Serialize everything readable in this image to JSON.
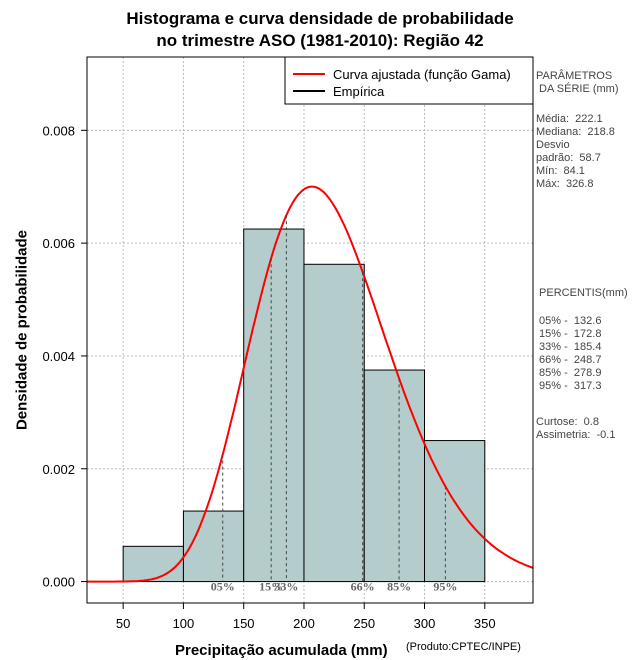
{
  "chart_data": {
    "type": "bar",
    "title_line1": "Histograma e curva densidade de probabilidade",
    "title_line2": "no trimestre ASO (1981-2010): Região 42",
    "xlabel": "Precipitação acumulada (mm)",
    "ylabel": "Densidade de probabilidade",
    "credit": "(Produto:CPTEC/INPE)",
    "xlim": [
      20,
      390
    ],
    "ylim": [
      -0.00038,
      0.0093
    ],
    "x_ticks": [
      50,
      100,
      150,
      200,
      250,
      300,
      350
    ],
    "y_ticks": [
      0.0,
      0.002,
      0.004,
      0.006,
      0.008
    ],
    "y_tick_labels": [
      "0.000",
      "0.002",
      "0.004",
      "0.006",
      "0.008"
    ],
    "bins": [
      {
        "from": 50,
        "to": 100,
        "density": 0.000625
      },
      {
        "from": 100,
        "to": 150,
        "density": 0.00125
      },
      {
        "from": 150,
        "to": 200,
        "density": 0.00625
      },
      {
        "from": 200,
        "to": 250,
        "density": 0.005625
      },
      {
        "from": 250,
        "to": 300,
        "density": 0.00375
      },
      {
        "from": 300,
        "to": 350,
        "density": 0.0025
      }
    ],
    "gamma_fit": {
      "mean": 222.1,
      "sd": 58.7
    },
    "percentile_markers": [
      {
        "label": "05%",
        "value": 132.6
      },
      {
        "label": "15%",
        "value": 172.8
      },
      {
        "label": "33%",
        "value": 185.4
      },
      {
        "label": "66%",
        "value": 248.7
      },
      {
        "label": "85%",
        "value": 278.9
      },
      {
        "label": "95%",
        "value": 317.3
      }
    ],
    "legend": [
      {
        "label": "Curva ajustada (função Gama)",
        "color": "#ff0000"
      },
      {
        "label": "Empírica",
        "color": "#000000"
      }
    ],
    "bar_color": "#b4cccc",
    "grid": true
  },
  "params": {
    "heading": "PARÂMETROS\n DA SÉRIE (mm)",
    "body": "Média:  222.1\nMediana:  218.8\nDesvio\npadrão:  58.7\nMín:  84.1\nMáx:  326.8"
  },
  "percentis": {
    "heading": " PERCENTIS(mm)",
    "body": " 05% -  132.6\n 15% -  172.8\n 33% -  185.4\n 66% -  248.7\n 85% -  278.9\n 95% -  317.3",
    "extra": "Curtose:  0.8\nAssimetria:  -0.1"
  }
}
